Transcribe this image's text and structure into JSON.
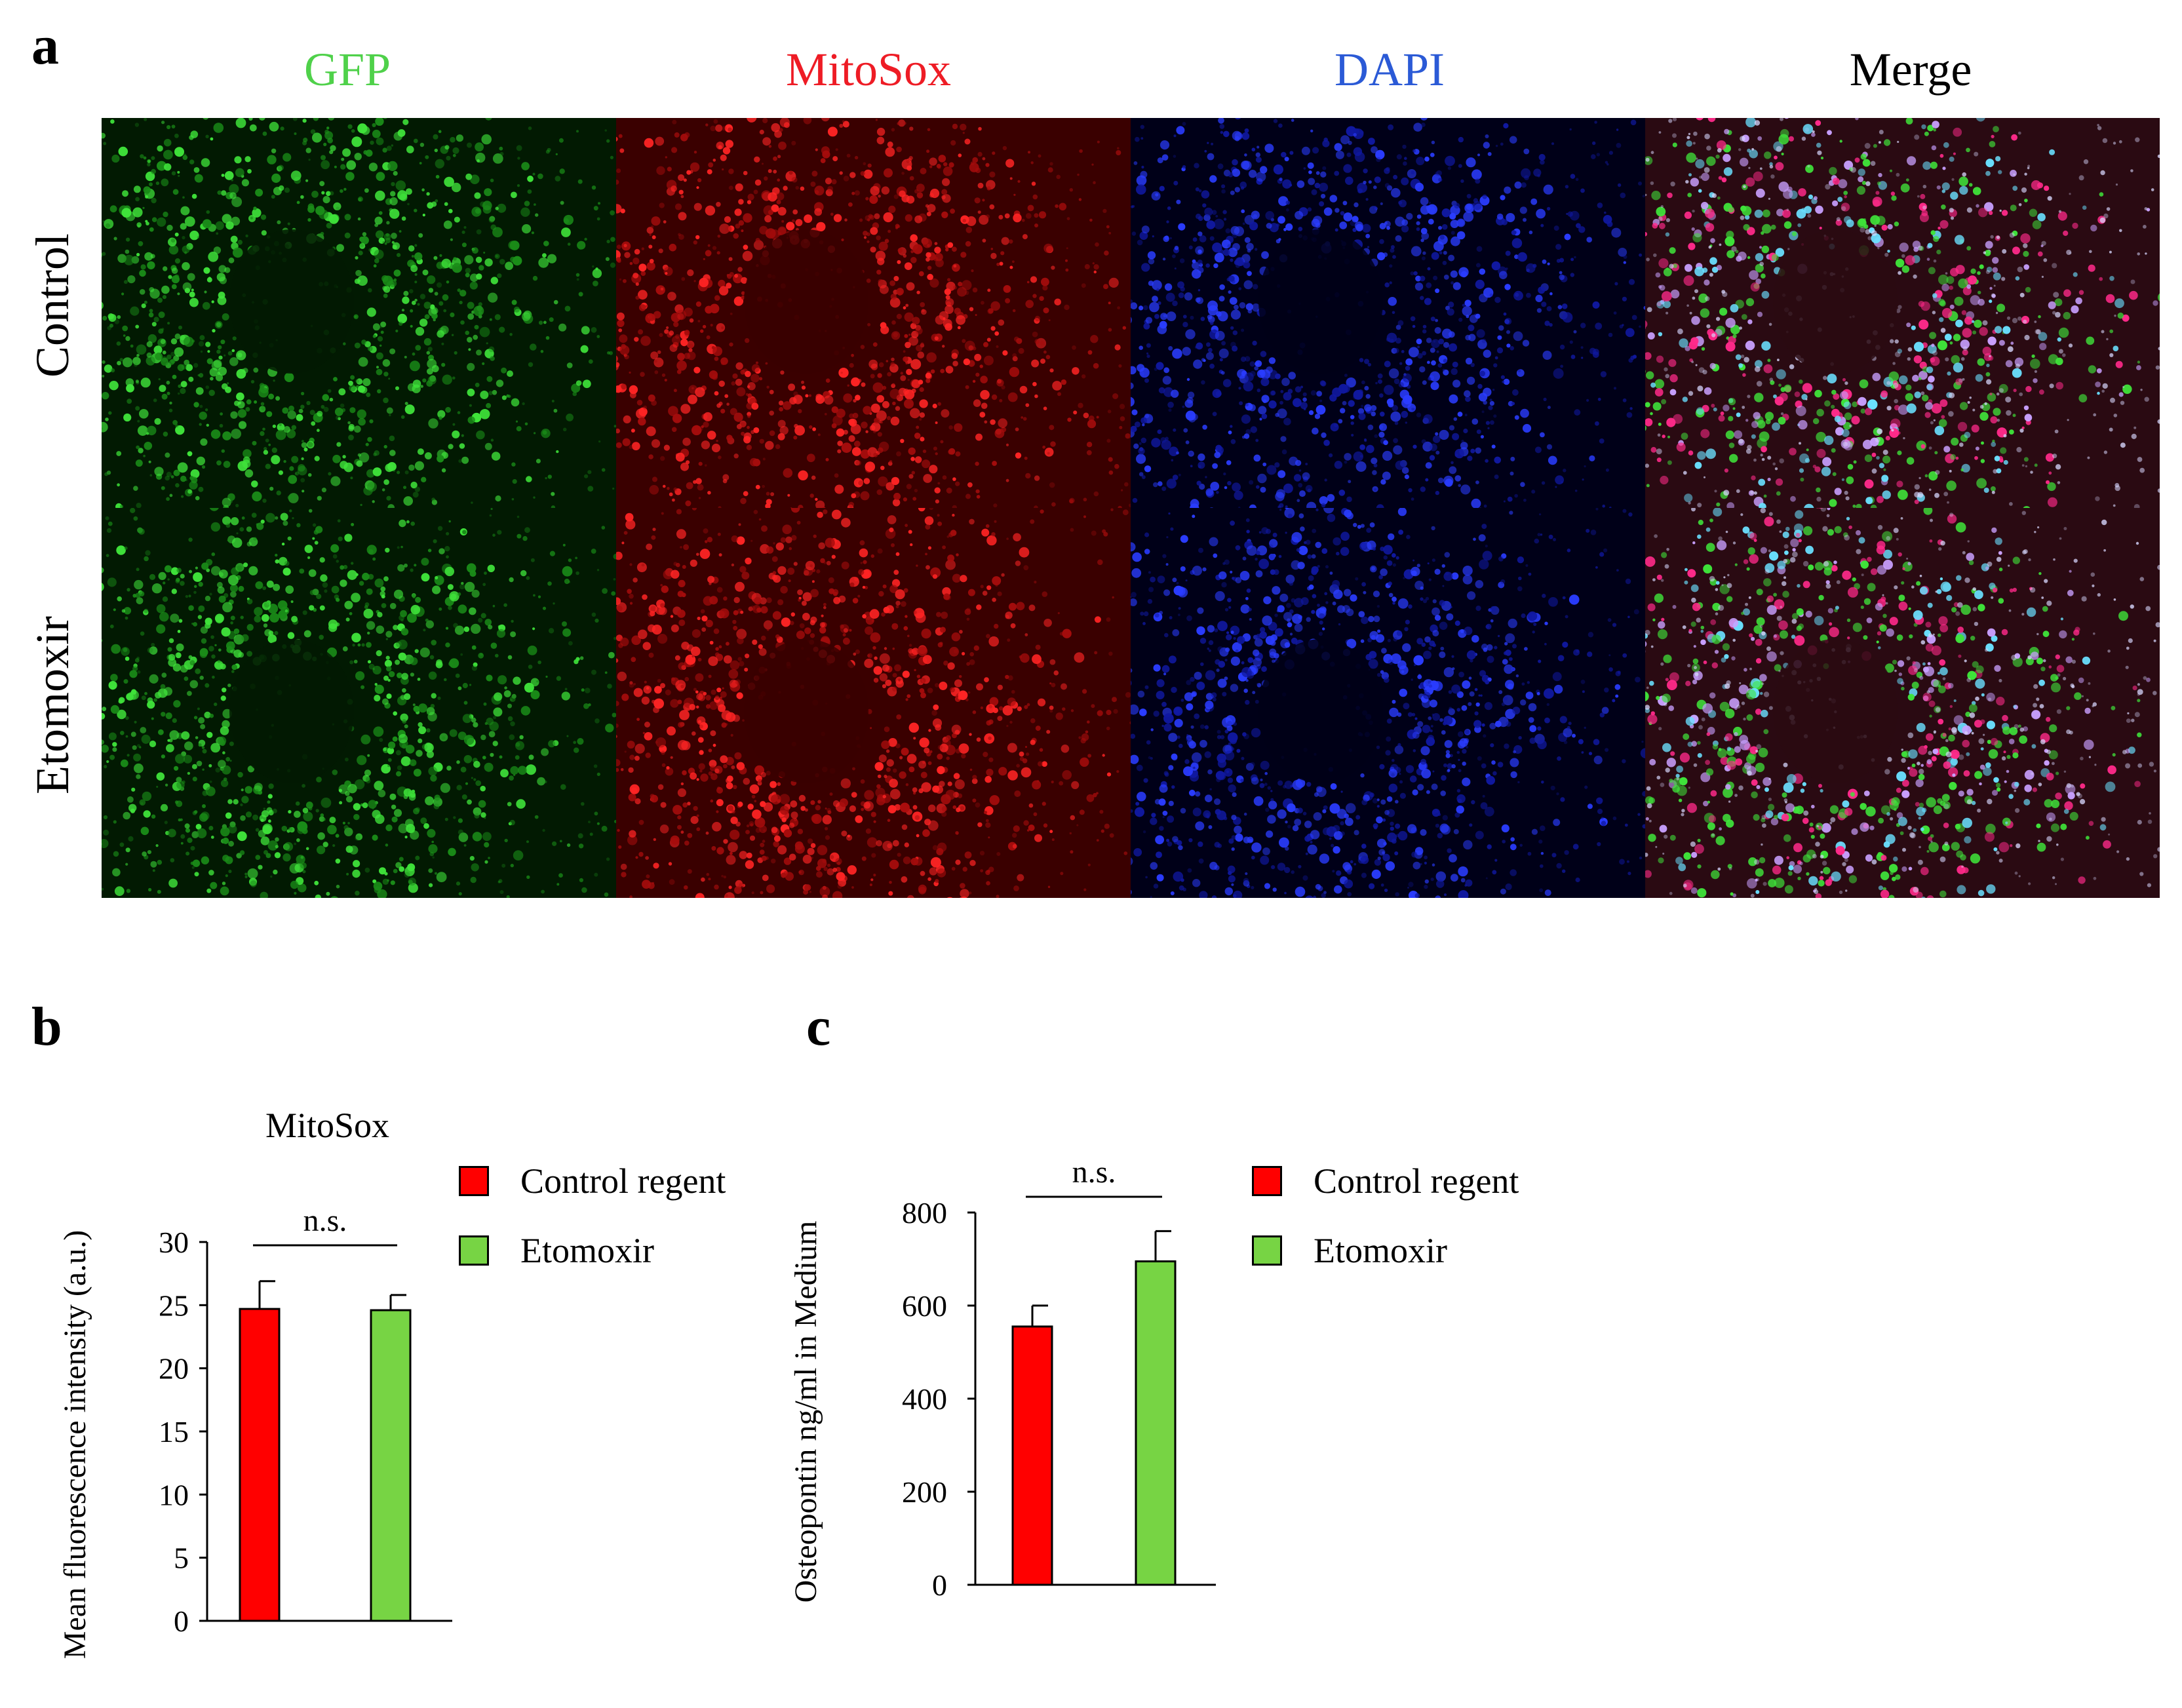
{
  "panel_a": {
    "letter": "a",
    "columns": [
      "GFP",
      "MitoSox",
      "DAPI",
      "Merge"
    ],
    "column_colors": [
      "#4fd14a",
      "#ee1c25",
      "#2b5ad6",
      "#000000"
    ],
    "rows": [
      "Control",
      "Etomoxir"
    ]
  },
  "panel_b": {
    "letter": "b",
    "title": "MitoSox",
    "legend": [
      "Control regent",
      "Etomoxir"
    ],
    "significance": "n.s."
  },
  "panel_c": {
    "letter": "c",
    "legend": [
      "Control regent",
      "Etomoxir"
    ],
    "significance": "n.s."
  },
  "colors": {
    "control": "#ff0000",
    "etomoxir": "#77d444"
  },
  "chart_data": [
    {
      "type": "bar",
      "title": "MitoSox",
      "ylabel": "Mean fluorescence intensity (a.u.)",
      "xlabel": "",
      "categories": [
        "Control regent",
        "Etomoxir"
      ],
      "values": [
        24.7,
        24.6
      ],
      "errors": [
        2.2,
        1.2
      ],
      "ylim": [
        0,
        30
      ],
      "yticks": [
        0,
        5,
        10,
        15,
        20,
        25,
        30
      ],
      "annotation": "n.s."
    },
    {
      "type": "bar",
      "title": "",
      "ylabel": "Osteopontin ng/ml in Medium",
      "xlabel": "",
      "categories": [
        "Control regent",
        "Etomoxir"
      ],
      "values": [
        555,
        695
      ],
      "errors": [
        45,
        65
      ],
      "ylim": [
        0,
        800
      ],
      "yticks": [
        0,
        200,
        400,
        600,
        800
      ],
      "annotation": "n.s."
    }
  ]
}
